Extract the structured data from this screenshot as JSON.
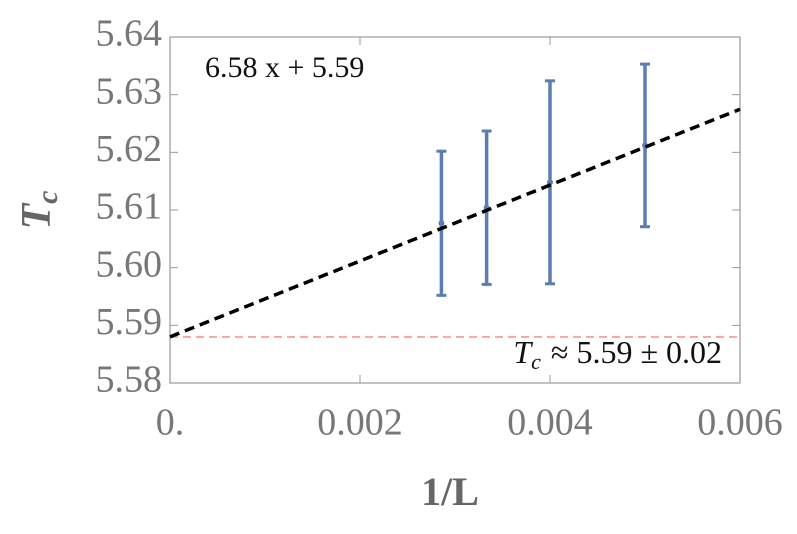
{
  "chart_data": {
    "type": "errorbar",
    "annotation": "6.58 x + 5.59",
    "xlabel": "1/L",
    "ylabel": {
      "main": "T",
      "sub": "c"
    },
    "x": [
      0.002857,
      0.003333,
      0.004,
      0.005
    ],
    "series": [
      {
        "color": "#5a7db3",
        "values": [
          5.6077,
          5.6104,
          5.6148,
          5.6212
        ],
        "errors": [
          0.0125,
          0.0133,
          0.0176,
          0.0141
        ]
      }
    ],
    "fit_line": {
      "slope": 6.58,
      "intercept": 5.588,
      "color": "#000000"
    },
    "reference_line": {
      "value": 5.588,
      "color": "#f4a6a0",
      "symbol": "T",
      "sub": "c",
      "label": "≈ 5.59 ± 0.02"
    },
    "xlim": [
      0,
      0.006
    ],
    "ylim": [
      5.58,
      5.64
    ],
    "xticks": [
      {
        "value": 0,
        "label": "0."
      },
      0.002,
      0.004,
      0.006
    ],
    "yticks": [
      5.58,
      5.59,
      {
        "value": 5.6,
        "label": "5.60"
      },
      5.61,
      5.62,
      5.63,
      5.64
    ],
    "grid": false
  }
}
